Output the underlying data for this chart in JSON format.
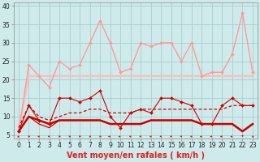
{
  "x": [
    0,
    1,
    2,
    3,
    4,
    5,
    6,
    7,
    8,
    9,
    10,
    11,
    12,
    13,
    14,
    15,
    16,
    17,
    18,
    19,
    20,
    21,
    22,
    23
  ],
  "series": [
    {
      "name": "rafales_max_line",
      "color": "#ffaaaa",
      "linewidth": 0.8,
      "marker": null,
      "markersize": 0,
      "values": [
        6,
        24,
        21,
        18,
        25,
        23,
        24,
        30,
        36,
        30,
        22,
        23,
        30,
        29,
        30,
        30,
        25,
        30,
        21,
        22,
        22,
        27,
        38,
        22
      ]
    },
    {
      "name": "rafales_mean_line",
      "color": "#ffbbbb",
      "linewidth": 1.5,
      "marker": null,
      "markersize": 0,
      "values": [
        6,
        21,
        21,
        21,
        21,
        21,
        21,
        21,
        21,
        21,
        21,
        21,
        21,
        21,
        21,
        21,
        21,
        21,
        21,
        21,
        21,
        21,
        21,
        21
      ]
    },
    {
      "name": "rafales_with_markers",
      "color": "#ff9999",
      "linewidth": 0.8,
      "marker": "D",
      "markersize": 2.0,
      "values": [
        6,
        24,
        21,
        18,
        25,
        23,
        24,
        30,
        36,
        30,
        22,
        23,
        30,
        29,
        30,
        30,
        25,
        30,
        21,
        22,
        22,
        27,
        38,
        22
      ]
    },
    {
      "name": "vent_max_markers",
      "color": "#cc0000",
      "linewidth": 0.8,
      "marker": "D",
      "markersize": 2.0,
      "values": [
        6,
        13,
        9,
        8,
        15,
        15,
        14,
        15,
        17,
        10,
        7,
        11,
        12,
        11,
        15,
        15,
        14,
        13,
        8,
        8,
        13,
        15,
        13,
        13
      ]
    },
    {
      "name": "vent_mean_dashed",
      "color": "#cc0000",
      "linewidth": 0.9,
      "marker": null,
      "markersize": 0,
      "dashes": [
        3,
        2
      ],
      "values": [
        7,
        13,
        10,
        9,
        10,
        11,
        11,
        12,
        12,
        11,
        11,
        11,
        12,
        12,
        12,
        12,
        12,
        12,
        12,
        12,
        12,
        13,
        13,
        13
      ]
    },
    {
      "name": "vent_moyen_solid",
      "color": "#cc0000",
      "linewidth": 1.8,
      "marker": null,
      "markersize": 0,
      "values": [
        6,
        10,
        9,
        8,
        9,
        9,
        9,
        9,
        9,
        8,
        8,
        8,
        8,
        9,
        9,
        9,
        9,
        9,
        8,
        8,
        8,
        8,
        6,
        8
      ]
    },
    {
      "name": "vent_min_solid",
      "color": "#cc0000",
      "linewidth": 0.9,
      "marker": null,
      "markersize": 0,
      "values": [
        6,
        10,
        8,
        7,
        9,
        9,
        9,
        9,
        9,
        8,
        8,
        8,
        8,
        9,
        9,
        9,
        9,
        9,
        8,
        8,
        8,
        8,
        6,
        8
      ]
    }
  ],
  "wind_arrows": {
    "x": [
      0,
      1,
      2,
      3,
      4,
      5,
      6,
      7,
      8,
      9,
      10,
      11,
      12,
      13,
      14,
      15,
      16,
      17,
      18,
      19,
      20,
      21,
      22,
      23
    ],
    "angles_deg": [
      225,
      45,
      315,
      315,
      45,
      45,
      45,
      45,
      45,
      270,
      270,
      315,
      315,
      315,
      315,
      315,
      315,
      315,
      270,
      270,
      270,
      270,
      180,
      135
    ]
  },
  "xlim": [
    -0.5,
    23.5
  ],
  "ylim": [
    4,
    41
  ],
  "yticks": [
    5,
    10,
    15,
    20,
    25,
    30,
    35,
    40
  ],
  "xticks": [
    0,
    1,
    2,
    3,
    4,
    5,
    6,
    7,
    8,
    9,
    10,
    11,
    12,
    13,
    14,
    15,
    16,
    17,
    18,
    19,
    20,
    21,
    22,
    23
  ],
  "xlabel": "Vent moyen/en rafales ( km/h )",
  "bg_color": "#ceeaea",
  "grid_color": "#aacece",
  "arrow_color": "#dd2222",
  "tick_fontsize": 5.5,
  "label_fontsize": 7
}
